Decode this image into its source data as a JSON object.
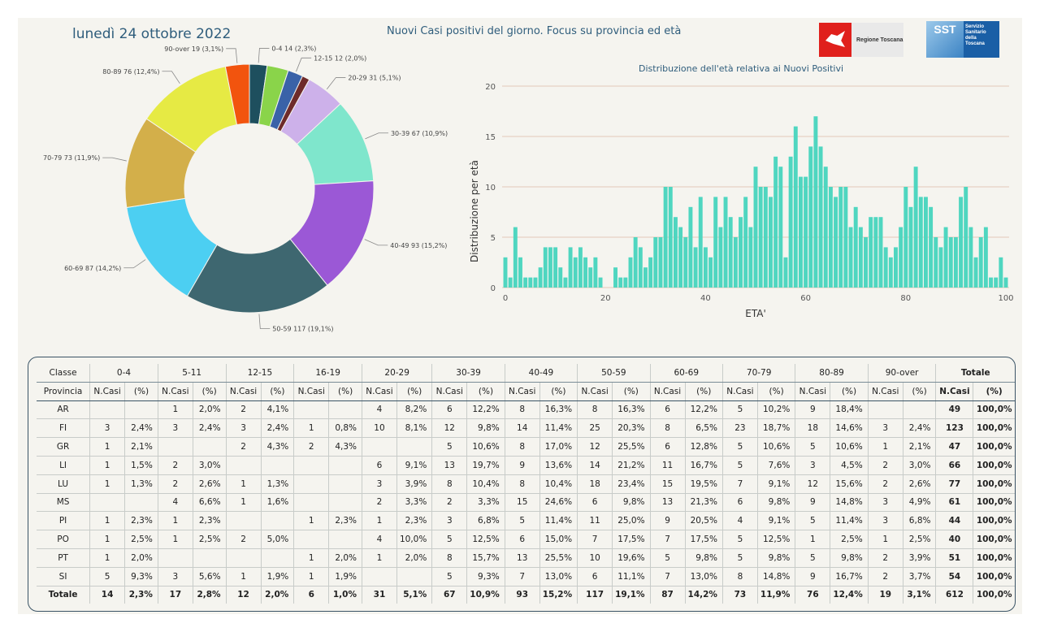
{
  "header": {
    "date": "lunedì 24 ottobre 2022",
    "title": "Nuovi Casi positivi del giorno. Focus su provincia ed età",
    "logo_rt": "Regione Toscana",
    "logo_sst_mark": "SST",
    "logo_sst_lines": [
      "Servizio",
      "Sanitario",
      "della",
      "Toscana"
    ]
  },
  "chart_data": [
    {
      "type": "pie",
      "style": "donut",
      "slices": [
        {
          "label": "0-4",
          "value": 14,
          "pct": "2,3%",
          "color": "#1e4f5e"
        },
        {
          "label": "5-11",
          "value": 17,
          "pct": "2,8%",
          "color": "#8ad44a"
        },
        {
          "label": "12-15",
          "value": 12,
          "pct": "2,0%",
          "color": "#3a62a8"
        },
        {
          "label": "16-19",
          "value": 6,
          "pct": "1,0%",
          "color": "#6e2b2b"
        },
        {
          "label": "20-29",
          "value": 31,
          "pct": "5,1%",
          "color": "#cdb1ea"
        },
        {
          "label": "30-39",
          "value": 67,
          "pct": "10,9%",
          "color": "#7fe6cc"
        },
        {
          "label": "40-49",
          "value": 93,
          "pct": "15,2%",
          "color": "#9b58d6"
        },
        {
          "label": "50-59",
          "value": 117,
          "pct": "19,1%",
          "color": "#3e6770"
        },
        {
          "label": "60-69",
          "value": 87,
          "pct": "14,2%",
          "color": "#4ccff2"
        },
        {
          "label": "70-79",
          "value": 73,
          "pct": "11,9%",
          "color": "#d3af4a"
        },
        {
          "label": "80-89",
          "value": 76,
          "pct": "12,4%",
          "color": "#e6ea44"
        },
        {
          "label": "90-over",
          "value": 19,
          "pct": "3,1%",
          "color": "#f2540e"
        }
      ],
      "visible_labels": [
        "0-4 14 (2,3%)",
        "12-15 12 (2,0%)",
        "20-29 31 (5,1%)",
        "30-39 67 (10,9%)",
        "40-49 93 (15,2%)",
        "50-59 117 (19,1%)",
        "60-69 87 (14,2%)",
        "70-79 73 (11,9%)",
        "80-89 76 (12,4%)",
        "90-over 19 (3,1%)"
      ]
    },
    {
      "type": "bar",
      "title": "Distribuzione dell'età relativa ai Nuovi Positivi",
      "xlabel": "ETA'",
      "ylabel": "Distribuzione per età",
      "xlim": [
        0,
        100
      ],
      "ylim": [
        0,
        20
      ],
      "xticks": [
        "0",
        "20",
        "40",
        "60",
        "80",
        "100"
      ],
      "yticks": [
        "0",
        "5",
        "10",
        "15",
        "20"
      ],
      "color": "#4fd6c0",
      "grid": true,
      "x": [
        0,
        1,
        2,
        3,
        4,
        5,
        6,
        7,
        8,
        9,
        10,
        11,
        12,
        13,
        14,
        15,
        16,
        17,
        18,
        19,
        20,
        21,
        22,
        23,
        24,
        25,
        26,
        27,
        28,
        29,
        30,
        31,
        32,
        33,
        34,
        35,
        36,
        37,
        38,
        39,
        40,
        41,
        42,
        43,
        44,
        45,
        46,
        47,
        48,
        49,
        50,
        51,
        52,
        53,
        54,
        55,
        56,
        57,
        58,
        59,
        60,
        61,
        62,
        63,
        64,
        65,
        66,
        67,
        68,
        69,
        70,
        71,
        72,
        73,
        74,
        75,
        76,
        77,
        78,
        79,
        80,
        81,
        82,
        83,
        84,
        85,
        86,
        87,
        88,
        89,
        90,
        91,
        92,
        93,
        94,
        95,
        96,
        97,
        98,
        99,
        100
      ],
      "values": [
        3,
        1,
        6,
        3,
        1,
        1,
        1,
        2,
        4,
        4,
        4,
        2,
        1,
        4,
        3,
        4,
        3,
        2,
        3,
        1,
        0,
        0,
        2,
        1,
        1,
        3,
        5,
        4,
        2,
        3,
        5,
        5,
        10,
        10,
        7,
        6,
        5,
        8,
        4,
        9,
        4,
        3,
        9,
        6,
        9,
        7,
        5,
        7,
        9,
        6,
        12,
        10,
        10,
        9,
        13,
        12,
        3,
        13,
        16,
        11,
        11,
        14,
        17,
        14,
        12,
        10,
        9,
        10,
        10,
        6,
        8,
        6,
        5,
        7,
        7,
        7,
        4,
        3,
        4,
        6,
        10,
        8,
        12,
        9,
        9,
        8,
        5,
        4,
        6,
        5,
        5,
        9,
        10,
        6,
        3,
        5,
        6,
        1,
        1,
        3,
        1
      ]
    }
  ],
  "table": {
    "corner_top": "Classe",
    "corner_sub": "Provincia",
    "groups": [
      "0-4",
      "5-11",
      "12-15",
      "16-19",
      "20-29",
      "30-39",
      "40-49",
      "50-59",
      "60-69",
      "70-79",
      "80-89",
      "90-over"
    ],
    "total_group": "Totale",
    "sub_n": "N.Casi",
    "sub_pct": "(%)",
    "rows": [
      {
        "prov": "AR",
        "cells": [
          [
            "",
            ""
          ],
          [
            "1",
            "2,0%"
          ],
          [
            "2",
            "4,1%"
          ],
          [
            "",
            ""
          ],
          [
            "4",
            "8,2%"
          ],
          [
            "6",
            "12,2%"
          ],
          [
            "8",
            "16,3%"
          ],
          [
            "8",
            "16,3%"
          ],
          [
            "6",
            "12,2%"
          ],
          [
            "5",
            "10,2%"
          ],
          [
            "9",
            "18,4%"
          ],
          [
            "",
            ""
          ]
        ],
        "tot": [
          "49",
          "100,0%"
        ]
      },
      {
        "prov": "FI",
        "cells": [
          [
            "3",
            "2,4%"
          ],
          [
            "3",
            "2,4%"
          ],
          [
            "3",
            "2,4%"
          ],
          [
            "1",
            "0,8%"
          ],
          [
            "10",
            "8,1%"
          ],
          [
            "12",
            "9,8%"
          ],
          [
            "14",
            "11,4%"
          ],
          [
            "25",
            "20,3%"
          ],
          [
            "8",
            "6,5%"
          ],
          [
            "23",
            "18,7%"
          ],
          [
            "18",
            "14,6%"
          ],
          [
            "3",
            "2,4%"
          ]
        ],
        "tot": [
          "123",
          "100,0%"
        ]
      },
      {
        "prov": "GR",
        "cells": [
          [
            "1",
            "2,1%"
          ],
          [
            "",
            ""
          ],
          [
            "2",
            "4,3%"
          ],
          [
            "2",
            "4,3%"
          ],
          [
            "",
            ""
          ],
          [
            "5",
            "10,6%"
          ],
          [
            "8",
            "17,0%"
          ],
          [
            "12",
            "25,5%"
          ],
          [
            "6",
            "12,8%"
          ],
          [
            "5",
            "10,6%"
          ],
          [
            "5",
            "10,6%"
          ],
          [
            "1",
            "2,1%"
          ]
        ],
        "tot": [
          "47",
          "100,0%"
        ]
      },
      {
        "prov": "LI",
        "cells": [
          [
            "1",
            "1,5%"
          ],
          [
            "2",
            "3,0%"
          ],
          [
            "",
            ""
          ],
          [
            "",
            ""
          ],
          [
            "6",
            "9,1%"
          ],
          [
            "13",
            "19,7%"
          ],
          [
            "9",
            "13,6%"
          ],
          [
            "14",
            "21,2%"
          ],
          [
            "11",
            "16,7%"
          ],
          [
            "5",
            "7,6%"
          ],
          [
            "3",
            "4,5%"
          ],
          [
            "2",
            "3,0%"
          ]
        ],
        "tot": [
          "66",
          "100,0%"
        ]
      },
      {
        "prov": "LU",
        "cells": [
          [
            "1",
            "1,3%"
          ],
          [
            "2",
            "2,6%"
          ],
          [
            "1",
            "1,3%"
          ],
          [
            "",
            ""
          ],
          [
            "3",
            "3,9%"
          ],
          [
            "8",
            "10,4%"
          ],
          [
            "8",
            "10,4%"
          ],
          [
            "18",
            "23,4%"
          ],
          [
            "15",
            "19,5%"
          ],
          [
            "7",
            "9,1%"
          ],
          [
            "12",
            "15,6%"
          ],
          [
            "2",
            "2,6%"
          ]
        ],
        "tot": [
          "77",
          "100,0%"
        ]
      },
      {
        "prov": "MS",
        "cells": [
          [
            "",
            ""
          ],
          [
            "4",
            "6,6%"
          ],
          [
            "1",
            "1,6%"
          ],
          [
            "",
            ""
          ],
          [
            "2",
            "3,3%"
          ],
          [
            "2",
            "3,3%"
          ],
          [
            "15",
            "24,6%"
          ],
          [
            "6",
            "9,8%"
          ],
          [
            "13",
            "21,3%"
          ],
          [
            "6",
            "9,8%"
          ],
          [
            "9",
            "14,8%"
          ],
          [
            "3",
            "4,9%"
          ]
        ],
        "tot": [
          "61",
          "100,0%"
        ]
      },
      {
        "prov": "PI",
        "cells": [
          [
            "1",
            "2,3%"
          ],
          [
            "1",
            "2,3%"
          ],
          [
            "",
            ""
          ],
          [
            "1",
            "2,3%"
          ],
          [
            "1",
            "2,3%"
          ],
          [
            "3",
            "6,8%"
          ],
          [
            "5",
            "11,4%"
          ],
          [
            "11",
            "25,0%"
          ],
          [
            "9",
            "20,5%"
          ],
          [
            "4",
            "9,1%"
          ],
          [
            "5",
            "11,4%"
          ],
          [
            "3",
            "6,8%"
          ]
        ],
        "tot": [
          "44",
          "100,0%"
        ]
      },
      {
        "prov": "PO",
        "cells": [
          [
            "1",
            "2,5%"
          ],
          [
            "1",
            "2,5%"
          ],
          [
            "2",
            "5,0%"
          ],
          [
            "",
            ""
          ],
          [
            "4",
            "10,0%"
          ],
          [
            "5",
            "12,5%"
          ],
          [
            "6",
            "15,0%"
          ],
          [
            "7",
            "17,5%"
          ],
          [
            "7",
            "17,5%"
          ],
          [
            "5",
            "12,5%"
          ],
          [
            "1",
            "2,5%"
          ],
          [
            "1",
            "2,5%"
          ]
        ],
        "tot": [
          "40",
          "100,0%"
        ]
      },
      {
        "prov": "PT",
        "cells": [
          [
            "1",
            "2,0%"
          ],
          [
            "",
            ""
          ],
          [
            "",
            ""
          ],
          [
            "1",
            "2,0%"
          ],
          [
            "1",
            "2,0%"
          ],
          [
            "8",
            "15,7%"
          ],
          [
            "13",
            "25,5%"
          ],
          [
            "10",
            "19,6%"
          ],
          [
            "5",
            "9,8%"
          ],
          [
            "5",
            "9,8%"
          ],
          [
            "5",
            "9,8%"
          ],
          [
            "2",
            "3,9%"
          ]
        ],
        "tot": [
          "51",
          "100,0%"
        ]
      },
      {
        "prov": "SI",
        "cells": [
          [
            "5",
            "9,3%"
          ],
          [
            "3",
            "5,6%"
          ],
          [
            "1",
            "1,9%"
          ],
          [
            "1",
            "1,9%"
          ],
          [
            "",
            ""
          ],
          [
            "5",
            "9,3%"
          ],
          [
            "7",
            "13,0%"
          ],
          [
            "6",
            "11,1%"
          ],
          [
            "7",
            "13,0%"
          ],
          [
            "8",
            "14,8%"
          ],
          [
            "9",
            "16,7%"
          ],
          [
            "2",
            "3,7%"
          ]
        ],
        "tot": [
          "54",
          "100,0%"
        ]
      }
    ],
    "total_row": {
      "prov": "Totale",
      "cells": [
        [
          "14",
          "2,3%"
        ],
        [
          "17",
          "2,8%"
        ],
        [
          "12",
          "2,0%"
        ],
        [
          "6",
          "1,0%"
        ],
        [
          "31",
          "5,1%"
        ],
        [
          "67",
          "10,9%"
        ],
        [
          "93",
          "15,2%"
        ],
        [
          "117",
          "19,1%"
        ],
        [
          "87",
          "14,2%"
        ],
        [
          "73",
          "11,9%"
        ],
        [
          "76",
          "12,4%"
        ],
        [
          "19",
          "3,1%"
        ]
      ],
      "tot": [
        "612",
        "100,0%"
      ]
    }
  }
}
